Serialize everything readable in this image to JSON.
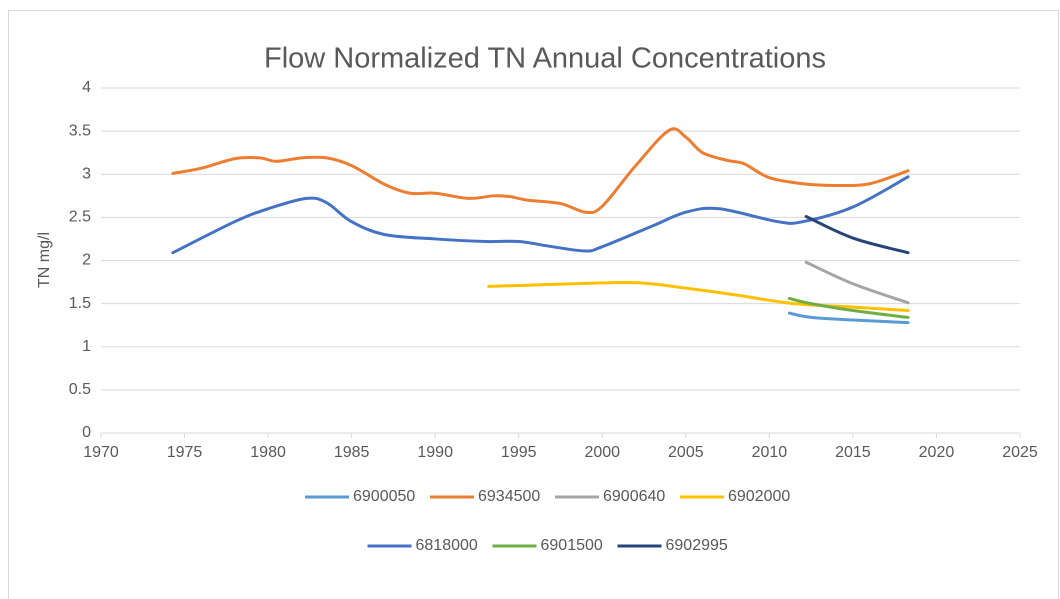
{
  "chart_data": {
    "type": "line",
    "title": "Flow Normalized TN Annual Concentrations",
    "y_label": "TN mg/l",
    "xlim": [
      1970,
      2025
    ],
    "xticks": [
      1970,
      1975,
      1980,
      1985,
      1990,
      1995,
      2000,
      2005,
      2010,
      2015,
      2020,
      2025
    ],
    "ylim": [
      0,
      4
    ],
    "yticks": [
      0,
      0.5,
      1,
      1.5,
      2,
      2.5,
      3,
      3.5,
      4
    ],
    "grid": true,
    "legend": "bottom",
    "series": [
      {
        "name": "6900050",
        "color": "#5b9bd5",
        "x": [
          2011.2,
          2012.5,
          2015,
          2018.3
        ],
        "values": [
          1.39,
          1.34,
          1.31,
          1.28
        ]
      },
      {
        "name": "6934500",
        "color": "#ed7d31",
        "x": [
          1974.3,
          1976,
          1978,
          1979.5,
          1980.5,
          1982,
          1983.5,
          1985,
          1987,
          1988.5,
          1990,
          1992,
          1993.5,
          1994.5,
          1995.5,
          1997.5,
          1999,
          2000,
          2002,
          2004,
          2005,
          2006,
          2007.5,
          2008.5,
          2010,
          2012,
          2014,
          2016,
          2018.3
        ],
        "values": [
          3.01,
          3.07,
          3.18,
          3.19,
          3.15,
          3.19,
          3.19,
          3.1,
          2.88,
          2.78,
          2.78,
          2.72,
          2.75,
          2.74,
          2.7,
          2.66,
          2.56,
          2.63,
          3.1,
          3.51,
          3.43,
          3.25,
          3.16,
          3.12,
          2.96,
          2.89,
          2.87,
          2.89,
          3.04
        ]
      },
      {
        "name": "6900640",
        "color": "#a5a5a5",
        "x": [
          2012.2,
          2015,
          2018.3
        ],
        "values": [
          1.98,
          1.73,
          1.51
        ]
      },
      {
        "name": "6902000",
        "color": "#ffc000",
        "x": [
          1993.2,
          1995,
          2000,
          2002.3,
          2005,
          2008,
          2011,
          2013,
          2015,
          2018.3
        ],
        "values": [
          1.7,
          1.71,
          1.74,
          1.74,
          1.68,
          1.6,
          1.51,
          1.48,
          1.46,
          1.42
        ]
      },
      {
        "name": "6818000",
        "color": "#4472c4",
        "x": [
          1974.3,
          1978,
          1980,
          1982.3,
          1983.5,
          1985,
          1987,
          1990,
          1993,
          1995,
          1997,
          1999,
          2000,
          2003,
          2005,
          2007,
          2010.5,
          2012,
          2015,
          2018.3
        ],
        "values": [
          2.09,
          2.45,
          2.6,
          2.72,
          2.67,
          2.45,
          2.3,
          2.25,
          2.22,
          2.22,
          2.16,
          2.11,
          2.16,
          2.4,
          2.56,
          2.6,
          2.45,
          2.45,
          2.62,
          2.97
        ]
      },
      {
        "name": "6901500",
        "color": "#70ad47",
        "x": [
          2011.2,
          2012.5,
          2015,
          2018.3
        ],
        "values": [
          1.56,
          1.5,
          1.42,
          1.34
        ]
      },
      {
        "name": "6902995",
        "color": "#264478",
        "x": [
          2012.2,
          2015,
          2018.3
        ],
        "values": [
          2.51,
          2.26,
          2.09
        ]
      }
    ]
  }
}
